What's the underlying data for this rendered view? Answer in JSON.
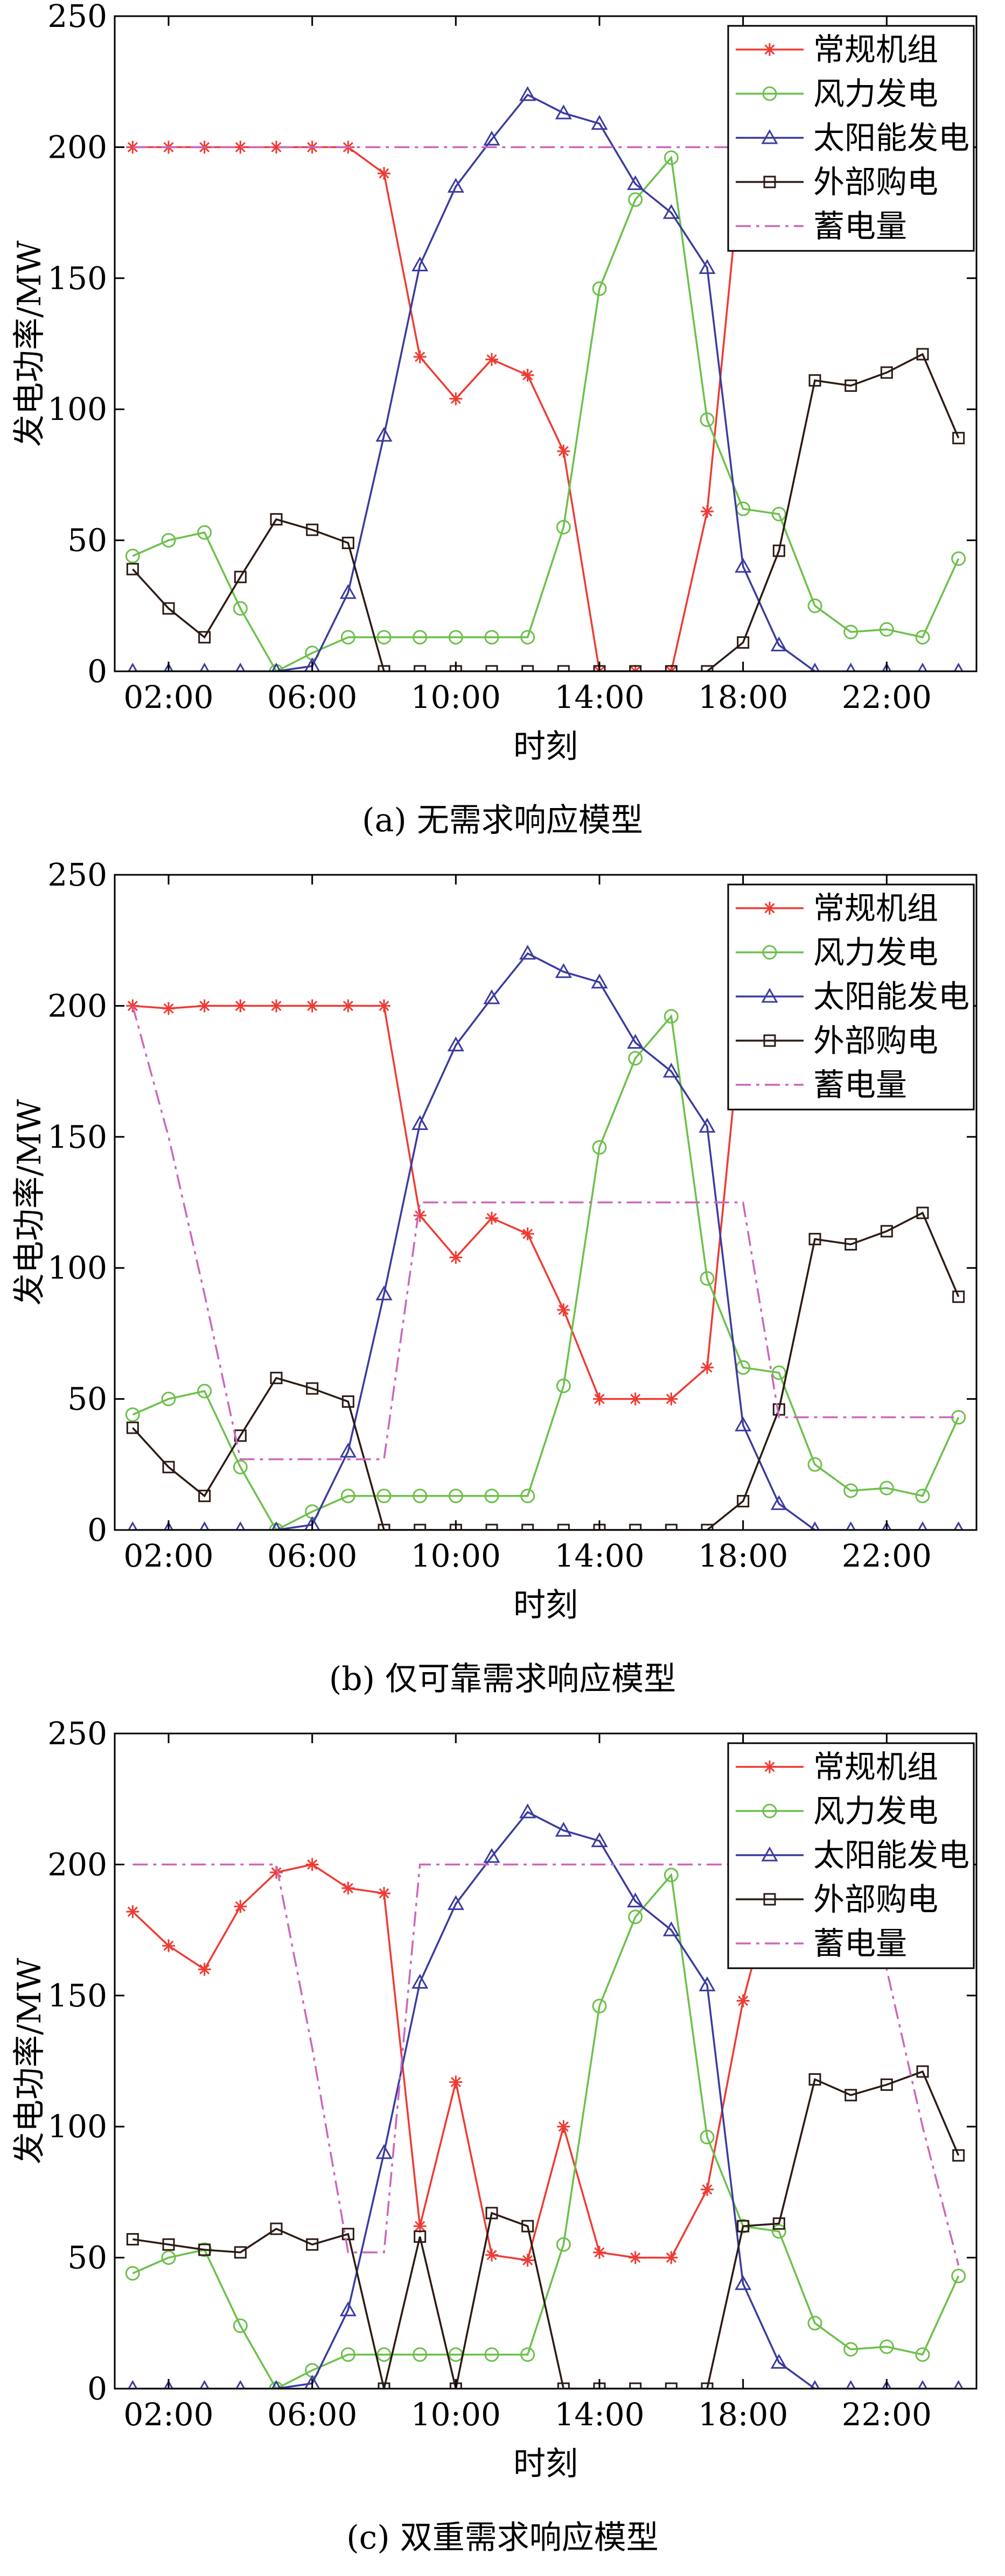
{
  "colors": {
    "conventional": "#ee3b33",
    "wind": "#6cc04a",
    "solar": "#3b3b9f",
    "purchase": "#2b1a14",
    "storage": "#cc66bb"
  },
  "chart_data": [
    {
      "type": "line",
      "caption": "(a)  无需求响应模型",
      "xlabel": "时刻",
      "ylabel": "发电功率/MW",
      "ylim": [
        0,
        250
      ],
      "yticks": [
        "0",
        "50",
        "100",
        "150",
        "200",
        "250"
      ],
      "xticks": [
        "02:00",
        "06:00",
        "10:00",
        "14:00",
        "18:00",
        "22:00"
      ],
      "xtick_hours": [
        2,
        6,
        10,
        14,
        18,
        22
      ],
      "x": [
        1,
        2,
        3,
        4,
        5,
        6,
        7,
        8,
        9,
        10,
        11,
        12,
        13,
        14,
        15,
        16,
        17,
        18,
        19,
        20,
        21,
        22,
        23,
        24
      ],
      "grid": false,
      "legend_position": "top-right",
      "series": [
        {
          "name": "常规机组",
          "values": [
            200,
            200,
            200,
            200,
            200,
            200,
            200,
            190,
            120,
            104,
            119,
            113,
            84,
            0,
            0,
            0,
            61,
            200,
            200,
            200,
            200,
            200,
            200,
            200
          ]
        },
        {
          "name": "风力发电",
          "values": [
            44,
            50,
            53,
            24,
            0,
            7,
            13,
            13,
            13,
            13,
            13,
            13,
            55,
            146,
            180,
            196,
            96,
            62,
            60,
            25,
            15,
            16,
            13,
            43
          ]
        },
        {
          "name": "太阳能发电",
          "values": [
            0,
            0,
            0,
            0,
            0,
            2,
            30,
            90,
            155,
            185,
            203,
            220,
            213,
            209,
            186,
            175,
            154,
            40,
            10,
            0,
            0,
            0,
            0,
            0
          ]
        },
        {
          "name": "外部购电",
          "values": [
            39,
            24,
            13,
            36,
            58,
            54,
            49,
            0,
            0,
            0,
            0,
            0,
            0,
            0,
            0,
            0,
            0,
            11,
            46,
            111,
            109,
            114,
            121,
            89
          ]
        },
        {
          "name": "蓄电量",
          "values": [
            200,
            200,
            200,
            200,
            200,
            200,
            200,
            200,
            200,
            200,
            200,
            200,
            200,
            200,
            200,
            200,
            200,
            200,
            200,
            200,
            200,
            200,
            200,
            200
          ]
        }
      ]
    },
    {
      "type": "line",
      "caption": "(b)  仅可靠需求响应模型",
      "xlabel": "时刻",
      "ylabel": "发电功率/MW",
      "ylim": [
        0,
        250
      ],
      "yticks": [
        "0",
        "50",
        "100",
        "150",
        "200",
        "250"
      ],
      "xticks": [
        "02:00",
        "06:00",
        "10:00",
        "14:00",
        "18:00",
        "22:00"
      ],
      "xtick_hours": [
        2,
        6,
        10,
        14,
        18,
        22
      ],
      "x": [
        1,
        2,
        3,
        4,
        5,
        6,
        7,
        8,
        9,
        10,
        11,
        12,
        13,
        14,
        15,
        16,
        17,
        18,
        19,
        20,
        21,
        22,
        23,
        24
      ],
      "grid": false,
      "legend_position": "top-right",
      "series": [
        {
          "name": "常规机组",
          "values": [
            200,
            199,
            200,
            200,
            200,
            200,
            200,
            200,
            120,
            104,
            119,
            113,
            84,
            50,
            50,
            50,
            62,
            200,
            200,
            200,
            200,
            200,
            200,
            200
          ]
        },
        {
          "name": "风力发电",
          "values": [
            44,
            50,
            53,
            24,
            0,
            7,
            13,
            13,
            13,
            13,
            13,
            13,
            55,
            146,
            180,
            196,
            96,
            62,
            60,
            25,
            15,
            16,
            13,
            43
          ]
        },
        {
          "name": "太阳能发电",
          "values": [
            0,
            0,
            0,
            0,
            0,
            2,
            30,
            90,
            155,
            185,
            203,
            220,
            213,
            209,
            186,
            175,
            154,
            40,
            10,
            0,
            0,
            0,
            0,
            0
          ]
        },
        {
          "name": "外部购电",
          "values": [
            39,
            24,
            13,
            36,
            58,
            54,
            49,
            0,
            0,
            0,
            0,
            0,
            0,
            0,
            0,
            0,
            0,
            11,
            46,
            111,
            109,
            114,
            121,
            89
          ]
        },
        {
          "name": "蓄电量",
          "values": [
            200,
            150,
            90,
            27,
            27,
            27,
            27,
            27,
            125,
            125,
            125,
            125,
            125,
            125,
            125,
            125,
            125,
            125,
            43,
            43,
            43,
            43,
            43,
            43
          ]
        }
      ]
    },
    {
      "type": "line",
      "caption": "(c)  双重需求响应模型",
      "xlabel": "时刻",
      "ylabel": "发电功率/MW",
      "ylim": [
        0,
        250
      ],
      "yticks": [
        "0",
        "50",
        "100",
        "150",
        "200",
        "250"
      ],
      "xticks": [
        "02:00",
        "06:00",
        "10:00",
        "14:00",
        "18:00",
        "22:00"
      ],
      "xtick_hours": [
        2,
        6,
        10,
        14,
        18,
        22
      ],
      "x": [
        1,
        2,
        3,
        4,
        5,
        6,
        7,
        8,
        9,
        10,
        11,
        12,
        13,
        14,
        15,
        16,
        17,
        18,
        19,
        20,
        21,
        22,
        23,
        24
      ],
      "grid": false,
      "legend_position": "top-right",
      "series": [
        {
          "name": "常规机组",
          "values": [
            182,
            169,
            160,
            184,
            197,
            200,
            191,
            189,
            62,
            117,
            51,
            49,
            100,
            52,
            50,
            50,
            76,
            148,
            200,
            200,
            200,
            200,
            200,
            200
          ]
        },
        {
          "name": "风力发电",
          "values": [
            44,
            50,
            53,
            24,
            0,
            7,
            13,
            13,
            13,
            13,
            13,
            13,
            55,
            146,
            180,
            196,
            96,
            62,
            60,
            25,
            15,
            16,
            13,
            43
          ]
        },
        {
          "name": "太阳能发电",
          "values": [
            0,
            0,
            0,
            0,
            0,
            2,
            30,
            90,
            155,
            185,
            203,
            220,
            213,
            209,
            186,
            175,
            154,
            40,
            10,
            0,
            0,
            0,
            0,
            0
          ]
        },
        {
          "name": "外部购电",
          "values": [
            57,
            55,
            53,
            52,
            61,
            55,
            59,
            0,
            58,
            0,
            67,
            62,
            0,
            0,
            0,
            0,
            0,
            62,
            63,
            118,
            112,
            116,
            121,
            89
          ]
        },
        {
          "name": "蓄电量",
          "values": [
            200,
            200,
            200,
            200,
            200,
            130,
            52,
            52,
            200,
            200,
            200,
            200,
            200,
            200,
            200,
            200,
            200,
            200,
            200,
            200,
            200,
            160,
            100,
            47
          ]
        }
      ]
    }
  ]
}
